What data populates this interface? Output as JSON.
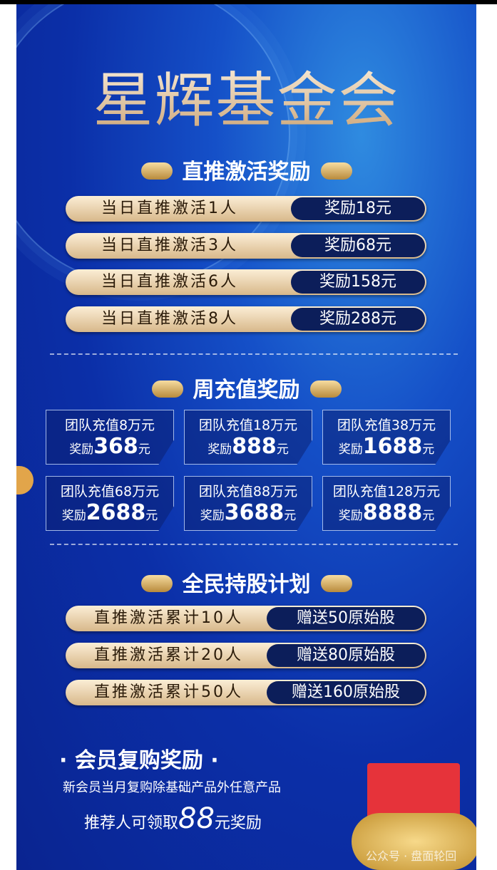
{
  "title": "星辉基金会",
  "section1": {
    "heading": "直推激活奖励",
    "rows": [
      {
        "condition": "当日直推激活1人",
        "reward": "奖励18元"
      },
      {
        "condition": "当日直推激活3人",
        "reward": "奖励68元"
      },
      {
        "condition": "当日直推激活6人",
        "reward": "奖励158元"
      },
      {
        "condition": "当日直推激活8人",
        "reward": "奖励288元"
      }
    ]
  },
  "section2": {
    "heading": "周充值奖励",
    "cards": [
      {
        "condition": "团队充值8万元",
        "prefix": "奖励",
        "amount": "368",
        "unit": "元"
      },
      {
        "condition": "团队充值18万元",
        "prefix": "奖励",
        "amount": "888",
        "unit": "元"
      },
      {
        "condition": "团队充值38万元",
        "prefix": "奖励",
        "amount": "1688",
        "unit": "元"
      },
      {
        "condition": "团队充值68万元",
        "prefix": "奖励",
        "amount": "2688",
        "unit": "元"
      },
      {
        "condition": "团队充值88万元",
        "prefix": "奖励",
        "amount": "3688",
        "unit": "元"
      },
      {
        "condition": "团队充值128万元",
        "prefix": "奖励",
        "amount": "8888",
        "unit": "元"
      }
    ]
  },
  "section3": {
    "heading": "全民持股计划",
    "rows": [
      {
        "condition": "直推激活累计10人",
        "reward": "赠送50原始股"
      },
      {
        "condition": "直推激活累计20人",
        "reward": "赠送80原始股"
      },
      {
        "condition": "直推激活累计50人",
        "reward": "赠送160原始股"
      }
    ]
  },
  "section4": {
    "heading": "· 会员复购奖励 ·",
    "line1": "新会员当月复购除基础产品外任意产品",
    "line2_prefix": "推荐人可领取",
    "line2_amount": "88",
    "line2_suffix": "元奖励"
  },
  "watermark": "公众号 · 盘面轮回",
  "colors": {
    "background": "#0b2fa8",
    "gold": "#e8cfa6",
    "pill_dark": "#0c1e5a"
  }
}
